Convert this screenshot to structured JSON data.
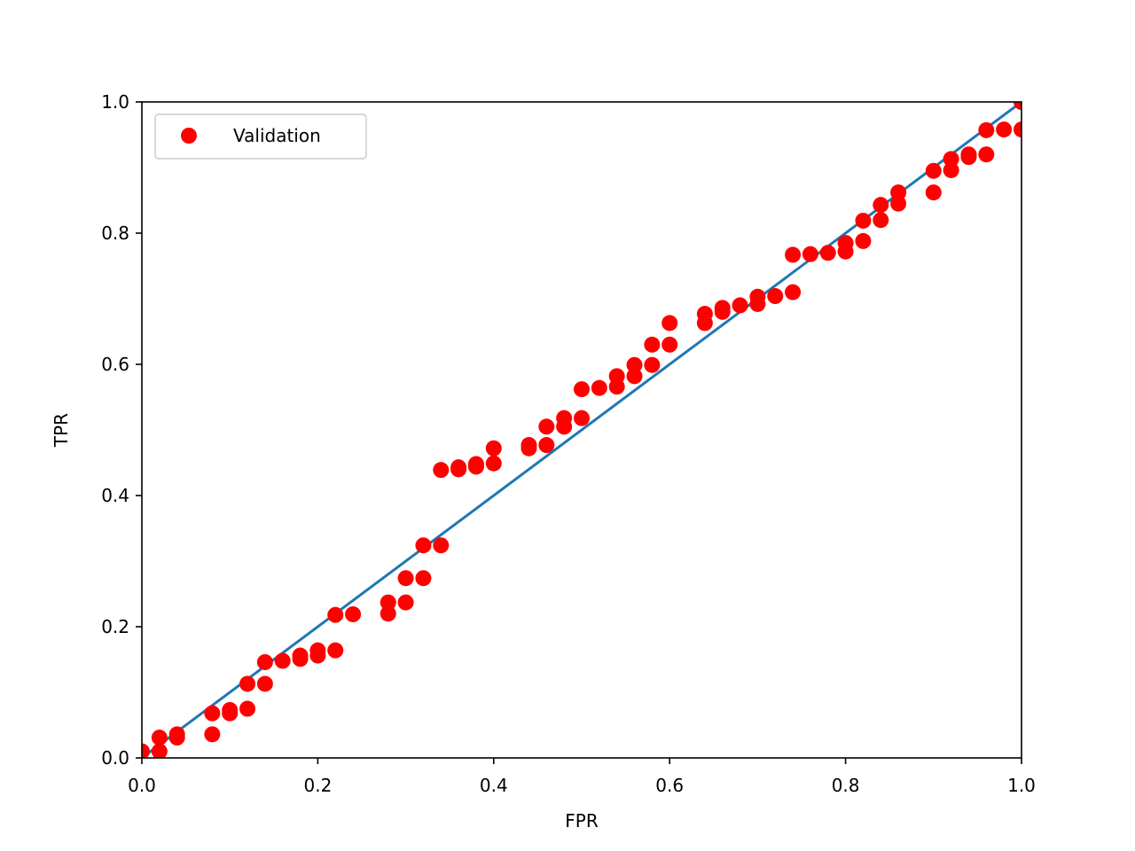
{
  "chart_data": {
    "type": "scatter",
    "title": "",
    "xlabel": "FPR",
    "ylabel": "TPR",
    "xlim": [
      0.0,
      1.0
    ],
    "ylim": [
      0.0,
      1.0
    ],
    "xticks": [
      "0.0",
      "0.2",
      "0.4",
      "0.6",
      "0.8",
      "1.0"
    ],
    "yticks": [
      "0.0",
      "0.2",
      "0.4",
      "0.6",
      "0.8",
      "1.0"
    ],
    "grid": false,
    "legend_position": "top-left",
    "series": [
      {
        "name": "Validation",
        "kind": "scatter",
        "color": "#ff0000",
        "x": [
          0.0,
          0.02,
          0.02,
          0.04,
          0.04,
          0.08,
          0.08,
          0.1,
          0.1,
          0.12,
          0.12,
          0.14,
          0.14,
          0.16,
          0.18,
          0.18,
          0.2,
          0.2,
          0.22,
          0.22,
          0.24,
          0.28,
          0.28,
          0.3,
          0.3,
          0.32,
          0.32,
          0.34,
          0.34,
          0.36,
          0.36,
          0.38,
          0.38,
          0.4,
          0.4,
          0.44,
          0.44,
          0.46,
          0.46,
          0.48,
          0.48,
          0.5,
          0.5,
          0.52,
          0.54,
          0.54,
          0.56,
          0.56,
          0.58,
          0.58,
          0.6,
          0.6,
          0.64,
          0.64,
          0.66,
          0.66,
          0.68,
          0.7,
          0.7,
          0.72,
          0.74,
          0.74,
          0.76,
          0.78,
          0.8,
          0.8,
          0.82,
          0.82,
          0.84,
          0.84,
          0.86,
          0.86,
          0.9,
          0.9,
          0.92,
          0.92,
          0.94,
          0.94,
          0.96,
          0.96,
          0.98,
          1.0,
          1.0
        ],
        "y": [
          0.01,
          0.01,
          0.031,
          0.031,
          0.036,
          0.036,
          0.068,
          0.068,
          0.073,
          0.075,
          0.113,
          0.113,
          0.146,
          0.148,
          0.151,
          0.156,
          0.156,
          0.164,
          0.164,
          0.218,
          0.219,
          0.22,
          0.237,
          0.237,
          0.274,
          0.274,
          0.324,
          0.324,
          0.439,
          0.44,
          0.443,
          0.444,
          0.448,
          0.449,
          0.472,
          0.472,
          0.477,
          0.477,
          0.505,
          0.505,
          0.518,
          0.518,
          0.562,
          0.564,
          0.566,
          0.582,
          0.582,
          0.599,
          0.599,
          0.63,
          0.63,
          0.663,
          0.663,
          0.677,
          0.68,
          0.686,
          0.69,
          0.692,
          0.703,
          0.704,
          0.71,
          0.767,
          0.768,
          0.77,
          0.772,
          0.785,
          0.788,
          0.819,
          0.82,
          0.843,
          0.845,
          0.862,
          0.862,
          0.895,
          0.896,
          0.913,
          0.916,
          0.92,
          0.92,
          0.957,
          0.958,
          0.958,
          1.0
        ]
      },
      {
        "name": "",
        "kind": "line",
        "color": "#1f77b4",
        "x": [
          0.0,
          1.0
        ],
        "y": [
          0.0,
          1.0
        ]
      }
    ]
  }
}
